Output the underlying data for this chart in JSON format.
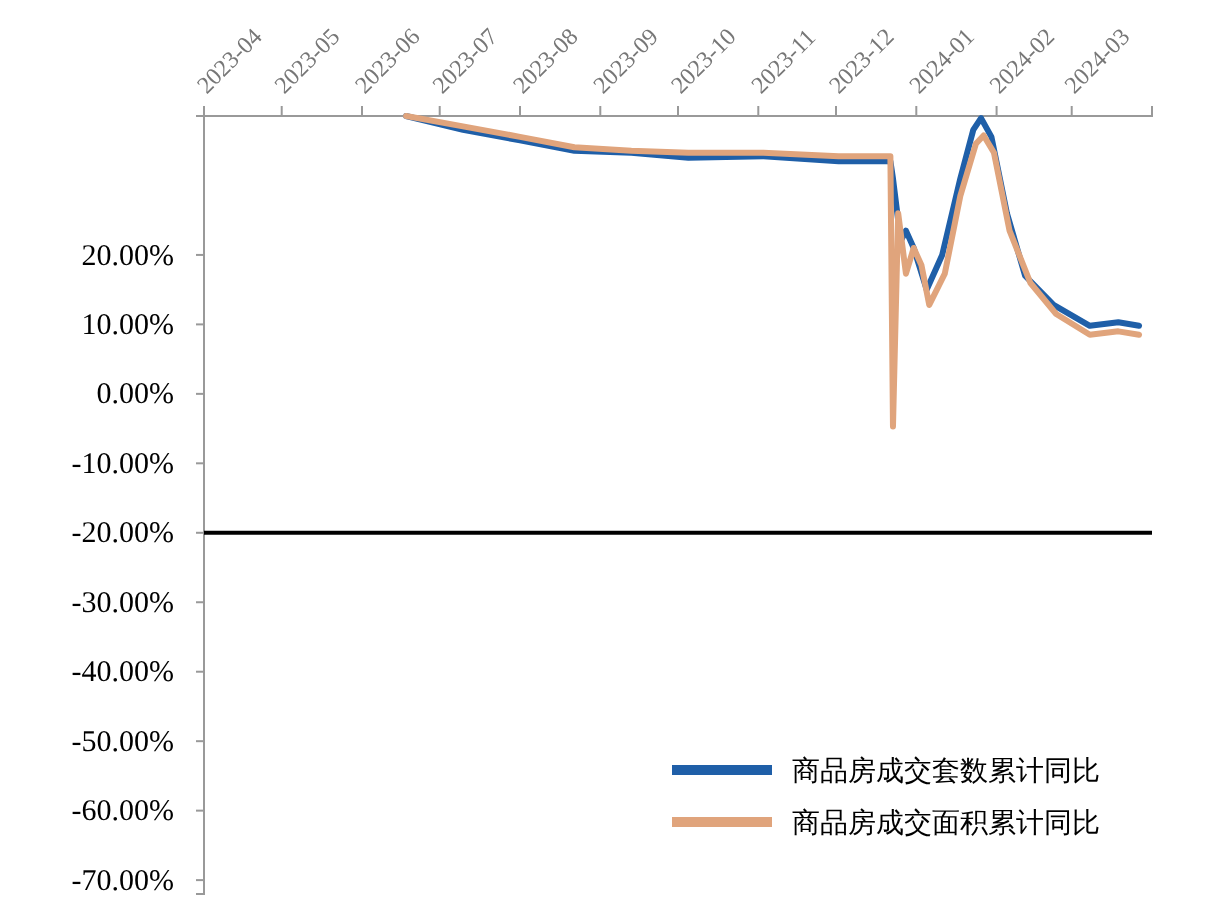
{
  "chart_data": {
    "type": "line",
    "x": [
      "2023-06-18",
      "2023-07-10",
      "2023-08-01",
      "2023-08-22",
      "2023-09-13",
      "2023-10-05",
      "2023-11-03",
      "2023-12-02",
      "2023-12-22",
      "2023-12-23",
      "2023-12-26",
      "2023-12-28",
      "2023-12-31",
      "2024-01-05",
      "2024-01-11",
      "2024-01-18",
      "2024-01-23",
      "2024-01-26",
      "2024-01-30",
      "2024-02-05",
      "2024-02-12",
      "2024-02-23",
      "2024-03-08",
      "2024-03-19",
      "2024-03-27"
    ],
    "series": [
      {
        "name": "商品房成交套数累计同比",
        "color": "#1f5fa8",
        "values": [
          40,
          38,
          36.5,
          35,
          34.7,
          34,
          34.2,
          33.5,
          33.5,
          31,
          22,
          23.5,
          21,
          15,
          20,
          31,
          38,
          39.7,
          37,
          26,
          17,
          12.8,
          9.8,
          10.3,
          9.8
        ]
      },
      {
        "name": "商品房成交面积累计同比",
        "color": "#e0a47c",
        "x": [
          "2023-06-18",
          "2023-07-10",
          "2023-08-01",
          "2023-08-22",
          "2023-09-13",
          "2023-10-05",
          "2023-11-03",
          "2023-12-02",
          "2023-12-22",
          "2023-12-23",
          "2023-12-25",
          "2023-12-28",
          "2023-12-31",
          "2024-01-03",
          "2024-01-06",
          "2024-01-12",
          "2024-01-18",
          "2024-01-24",
          "2024-01-27",
          "2024-01-31",
          "2024-02-06",
          "2024-02-14",
          "2024-02-24",
          "2024-03-08",
          "2024-03-19",
          "2024-03-27"
        ],
        "values": [
          40,
          38.5,
          37,
          35.5,
          35,
          34.7,
          34.7,
          34.2,
          34.2,
          -4.7,
          26,
          17.3,
          21,
          18.5,
          12.8,
          17.3,
          28.5,
          36,
          37.2,
          34.7,
          23.5,
          16,
          11.5,
          8.5,
          9,
          8.5
        ]
      }
    ],
    "xlim": [
      "2023-04-01",
      "2024-04-01"
    ],
    "xticks": [
      {
        "value": "2023-04-01",
        "label": "2023-04"
      },
      {
        "value": "2023-05-01",
        "label": "2023-05"
      },
      {
        "value": "2023-06-01",
        "label": "2023-06"
      },
      {
        "value": "2023-07-01",
        "label": "2023-07"
      },
      {
        "value": "2023-08-01",
        "label": "2023-08"
      },
      {
        "value": "2023-09-01",
        "label": "2023-09"
      },
      {
        "value": "2023-10-01",
        "label": "2023-10"
      },
      {
        "value": "2023-11-01",
        "label": "2023-11"
      },
      {
        "value": "2023-12-01",
        "label": "2023-12"
      },
      {
        "value": "2024-01-01",
        "label": "2024-01"
      },
      {
        "value": "2024-02-01",
        "label": "2024-02"
      },
      {
        "value": "2024-03-01",
        "label": "2024-03"
      },
      {
        "value": "2024-04-01",
        "label": null
      }
    ],
    "ylim": [
      -72,
      40
    ],
    "yticks": [
      {
        "value": 20,
        "label": "20.00%"
      },
      {
        "value": 10,
        "label": "10.00%"
      },
      {
        "value": 0,
        "label": "0.00%"
      },
      {
        "value": -10,
        "label": "-10.00%"
      },
      {
        "value": -20,
        "label": "-20.00%"
      },
      {
        "value": -30,
        "label": "-30.00%"
      },
      {
        "value": -40,
        "label": "-40.00%"
      },
      {
        "value": -50,
        "label": "-50.00%"
      },
      {
        "value": -60,
        "label": "-60.00%"
      },
      {
        "value": -70,
        "label": "-70.00%"
      }
    ],
    "ref_lines": [
      {
        "axis": "y",
        "value": -20,
        "label": null,
        "color": "#000000"
      }
    ],
    "legend": "bottom right",
    "grid": false,
    "marker": "none",
    "line_style": "solid"
  }
}
